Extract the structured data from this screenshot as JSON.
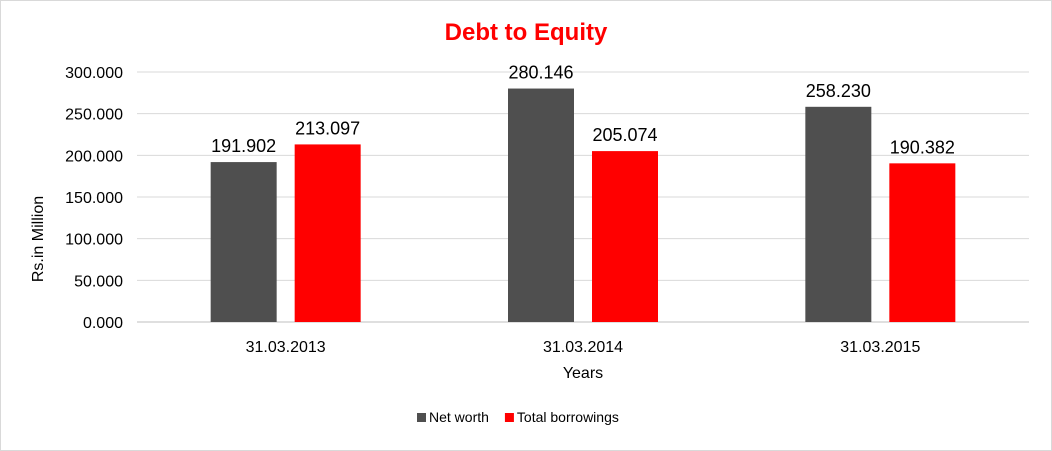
{
  "chart_data": {
    "type": "bar",
    "title": "Debt to Equity",
    "xlabel": "Years",
    "ylabel": "Rs.in Million",
    "categories": [
      "31.03.2013",
      "31.03.2014",
      "31.03.2015"
    ],
    "series": [
      {
        "name": "Net worth",
        "values": [
          191.902,
          280.146,
          258.23
        ],
        "labels": [
          "191.902",
          "280.146",
          "258.230"
        ],
        "color": "#4f4f4f"
      },
      {
        "name": "Total borrowings",
        "values": [
          213.097,
          205.074,
          190.382
        ],
        "labels": [
          "213.097",
          "205.074",
          "190.382"
        ],
        "color": "#ff0000"
      }
    ],
    "ylim": [
      0,
      300
    ],
    "yticks": [
      "0.000",
      "50.000",
      "100.000",
      "150.000",
      "200.000",
      "250.000",
      "300.000"
    ],
    "grid": true,
    "legend_position": "bottom",
    "title_color": "#ff0000"
  }
}
